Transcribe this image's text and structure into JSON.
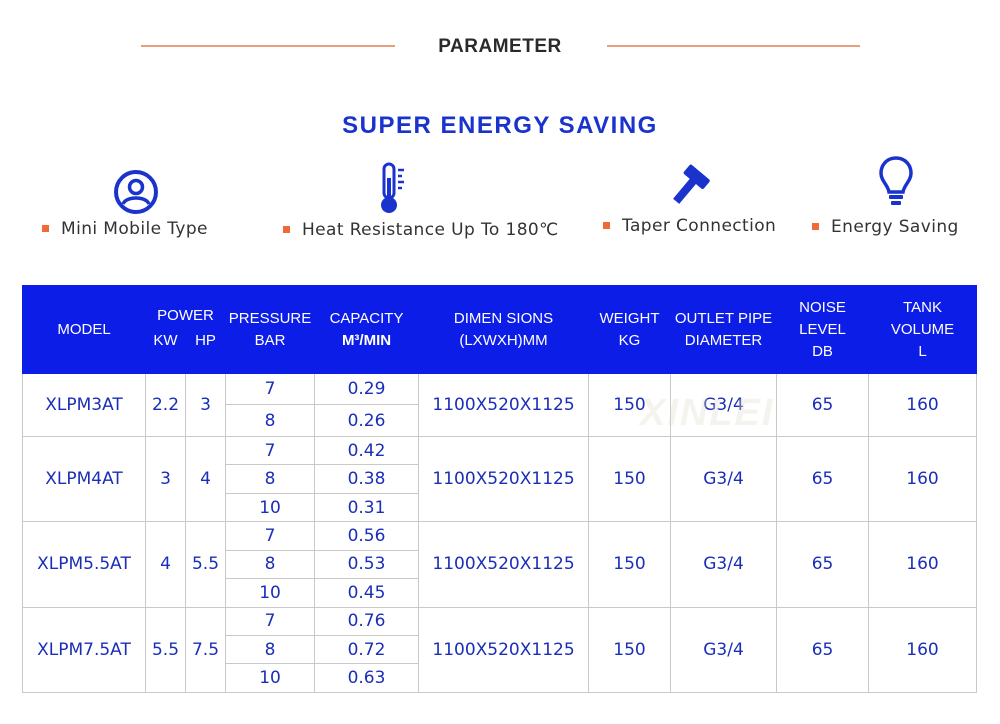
{
  "header": {
    "section_title": "PARAMETER",
    "headline": "SUPER ENERGY SAVING",
    "accent_color": "#e7a079",
    "headline_color": "#1a33cc"
  },
  "features": [
    {
      "icon": "user-icon",
      "label": "Mini Mobile Type"
    },
    {
      "icon": "thermometer-icon",
      "label": "Heat Resistance Up To 180℃"
    },
    {
      "icon": "hammer-icon",
      "label": "Taper Connection"
    },
    {
      "icon": "lightbulb-icon",
      "label": "Energy Saving"
    }
  ],
  "table": {
    "header_color": "#0c1de8",
    "headers": {
      "model": "MODEL",
      "power": "POWER",
      "kw": "KW",
      "hp": "HP",
      "pressure_1": "PRESSURE",
      "pressure_2": "BAR",
      "capacity_1": "CAPACITY",
      "capacity_2": "M³/MIN",
      "dimensions_1": "DIMEN SIONS",
      "dimensions_2": "(LXWXH)MM",
      "weight_1": "WEIGHT",
      "weight_2": "KG",
      "outlet_1": "OUTLET PIPE",
      "outlet_2": "DIAMETER",
      "noise_1": "NOISE LEVEL",
      "noise_2": "DB",
      "tank_1": "TANK",
      "tank_2": "VOLUME",
      "tank_3": "L"
    },
    "models": [
      {
        "model": "XLPM3AT",
        "kw": "2.2",
        "hp": "3",
        "rows": [
          {
            "pressure": "7",
            "capacity": "0.29"
          },
          {
            "pressure": "8",
            "capacity": "0.26"
          }
        ],
        "dimensions": "1100X520X1125",
        "weight": "150",
        "outlet": "G3/4",
        "noise": "65",
        "tank": "160"
      },
      {
        "model": "XLPM4AT",
        "kw": "3",
        "hp": "4",
        "rows": [
          {
            "pressure": "7",
            "capacity": "0.42"
          },
          {
            "pressure": "8",
            "capacity": "0.38"
          },
          {
            "pressure": "10",
            "capacity": "0.31"
          }
        ],
        "dimensions": "1100X520X1125",
        "weight": "150",
        "outlet": "G3/4",
        "noise": "65",
        "tank": "160"
      },
      {
        "model": "XLPM5.5AT",
        "kw": "4",
        "hp": "5.5",
        "rows": [
          {
            "pressure": "7",
            "capacity": "0.56"
          },
          {
            "pressure": "8",
            "capacity": "0.53"
          },
          {
            "pressure": "10",
            "capacity": "0.45"
          }
        ],
        "dimensions": "1100X520X1125",
        "weight": "150",
        "outlet": "G3/4",
        "noise": "65",
        "tank": "160"
      },
      {
        "model": "XLPM7.5AT",
        "kw": "5.5",
        "hp": "7.5",
        "rows": [
          {
            "pressure": "7",
            "capacity": "0.76"
          },
          {
            "pressure": "8",
            "capacity": "0.72"
          },
          {
            "pressure": "10",
            "capacity": "0.63"
          }
        ],
        "dimensions": "1100X520X1125",
        "weight": "150",
        "outlet": "G3/4",
        "noise": "65",
        "tank": "160"
      }
    ]
  },
  "watermark": "XINLEI"
}
